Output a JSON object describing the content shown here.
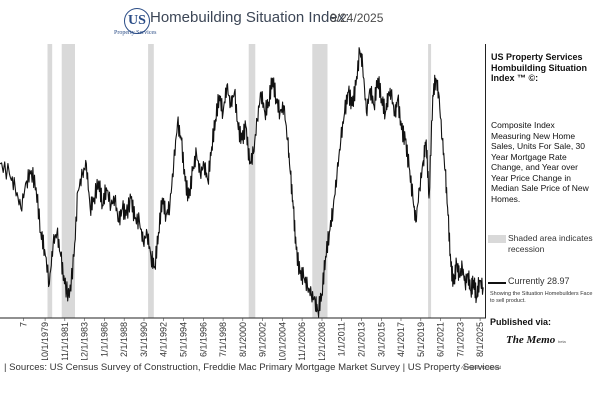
{
  "header": {
    "logo_letters": "US",
    "logo_sub": "Property Services",
    "title": "Homebuilding Situation Index:",
    "date": "9/24/2025"
  },
  "sidebar": {
    "title": "US Property Services Hombuilding Situation Index ™ ©:",
    "description": "Composite Index Measuring New Home Sales, Units For Sale, 30 Year Mortgage Rate Change, and Year over Year Price Change in Median Sale Price of New Homes.",
    "legend_shaded": "Shaded area indicates recession",
    "current": "Currently 28.97",
    "current_note": "Showing the Situation Homebuilders Face to sell product.",
    "published_label": "Published via:",
    "publisher": "The Memo",
    "publisher_sup": "beta"
  },
  "footer": {
    "sources": "| Sources: US Census Survey of Construction, Freddie Mac Primary Mortgage Market Survey | US Property Services",
    "rights": "All Rights Reserved"
  },
  "colors": {
    "line": "#111111",
    "recession": "#d9d9d9",
    "title": "#3c4656",
    "logo": "#2a4c86"
  },
  "chart_data": {
    "type": "line",
    "title": "Homebuilding Situation Index",
    "x_range": [
      1975.0,
      2026.2
    ],
    "ylim": [
      20,
      100
    ],
    "current_value": 28.97,
    "x_tick_labels": [
      {
        "label": "7",
        "x": 1977.5
      },
      {
        "label": "10/1/1979",
        "x": 1979.75
      },
      {
        "label": "11/1/1981",
        "x": 1981.83
      },
      {
        "label": "12/1/1983",
        "x": 1983.92
      },
      {
        "label": "1/1/1986",
        "x": 1986.0
      },
      {
        "label": "2/1/1988",
        "x": 1988.08
      },
      {
        "label": "3/1/1990",
        "x": 1990.17
      },
      {
        "label": "4/1/1992",
        "x": 1992.25
      },
      {
        "label": "5/1/1994",
        "x": 1994.33
      },
      {
        "label": "6/1/1996",
        "x": 1996.42
      },
      {
        "label": "7/1/1998",
        "x": 1998.5
      },
      {
        "label": "8/1/2000",
        "x": 2000.58
      },
      {
        "label": "9/1/2002",
        "x": 2002.67
      },
      {
        "label": "10/1/2004",
        "x": 2004.75
      },
      {
        "label": "11/1/2006",
        "x": 2006.83
      },
      {
        "label": "12/1/2008",
        "x": 2008.92
      },
      {
        "label": "1/1/2011",
        "x": 2011.0
      },
      {
        "label": "2/1/2013",
        "x": 2013.08
      },
      {
        "label": "3/1/2015",
        "x": 2015.17
      },
      {
        "label": "4/1/2017",
        "x": 2017.25
      },
      {
        "label": "5/1/2019",
        "x": 2019.33
      },
      {
        "label": "6/1/2021",
        "x": 2021.42
      },
      {
        "label": "7/1/2023",
        "x": 2023.5
      },
      {
        "label": "8/1/2025",
        "x": 2025.58
      }
    ],
    "recessions": [
      [
        1980.0,
        1980.5
      ],
      [
        1981.5,
        1982.9
      ],
      [
        1990.6,
        1991.2
      ],
      [
        2001.2,
        2001.9
      ],
      [
        2007.9,
        2009.5
      ],
      [
        2020.1,
        2020.4
      ]
    ],
    "series": [
      {
        "name": "Homebuilding Situation Index",
        "points": [
          [
            1975.0,
            65
          ],
          [
            1976.0,
            62
          ],
          [
            1976.6,
            58
          ],
          [
            1977.2,
            52
          ],
          [
            1977.8,
            60
          ],
          [
            1978.3,
            63
          ],
          [
            1978.8,
            58
          ],
          [
            1979.3,
            45
          ],
          [
            1979.7,
            40
          ],
          [
            1980.2,
            30
          ],
          [
            1980.6,
            42
          ],
          [
            1981.0,
            45
          ],
          [
            1981.4,
            38
          ],
          [
            1981.8,
            30
          ],
          [
            1982.3,
            26
          ],
          [
            1982.8,
            38
          ],
          [
            1983.2,
            57
          ],
          [
            1983.7,
            62
          ],
          [
            1984.1,
            65
          ],
          [
            1984.5,
            52
          ],
          [
            1984.9,
            55
          ],
          [
            1985.4,
            60
          ],
          [
            1985.8,
            53
          ],
          [
            1986.2,
            58
          ],
          [
            1986.7,
            53
          ],
          [
            1987.1,
            55
          ],
          [
            1987.5,
            48
          ],
          [
            1987.9,
            52
          ],
          [
            1988.3,
            50
          ],
          [
            1988.8,
            55
          ],
          [
            1989.2,
            49
          ],
          [
            1989.7,
            48
          ],
          [
            1990.1,
            42
          ],
          [
            1990.5,
            45
          ],
          [
            1990.9,
            38
          ],
          [
            1991.3,
            35
          ],
          [
            1991.7,
            45
          ],
          [
            1992.1,
            55
          ],
          [
            1992.5,
            50
          ],
          [
            1992.9,
            53
          ],
          [
            1993.3,
            65
          ],
          [
            1993.7,
            77
          ],
          [
            1994.1,
            72
          ],
          [
            1994.5,
            60
          ],
          [
            1994.9,
            55
          ],
          [
            1995.3,
            63
          ],
          [
            1995.7,
            68
          ],
          [
            1996.1,
            62
          ],
          [
            1996.5,
            65
          ],
          [
            1996.9,
            60
          ],
          [
            1997.3,
            70
          ],
          [
            1997.7,
            78
          ],
          [
            1998.1,
            85
          ],
          [
            1998.5,
            80
          ],
          [
            1998.9,
            88
          ],
          [
            1999.3,
            82
          ],
          [
            1999.7,
            86
          ],
          [
            2000.1,
            75
          ],
          [
            2000.5,
            72
          ],
          [
            2000.9,
            76
          ],
          [
            2001.3,
            65
          ],
          [
            2001.7,
            68
          ],
          [
            2002.1,
            78
          ],
          [
            2002.5,
            86
          ],
          [
            2002.9,
            80
          ],
          [
            2003.3,
            83
          ],
          [
            2003.7,
            90
          ],
          [
            2004.1,
            84
          ],
          [
            2004.5,
            80
          ],
          [
            2004.9,
            82
          ],
          [
            2005.3,
            72
          ],
          [
            2005.6,
            62
          ],
          [
            2005.9,
            52
          ],
          [
            2006.2,
            40
          ],
          [
            2006.6,
            33
          ],
          [
            2007.0,
            32
          ],
          [
            2007.4,
            29
          ],
          [
            2007.8,
            27
          ],
          [
            2008.2,
            25
          ],
          [
            2008.5,
            22
          ],
          [
            2008.9,
            27
          ],
          [
            2009.3,
            38
          ],
          [
            2009.7,
            45
          ],
          [
            2010.1,
            52
          ],
          [
            2010.5,
            62
          ],
          [
            2010.9,
            72
          ],
          [
            2011.3,
            80
          ],
          [
            2011.7,
            86
          ],
          [
            2012.1,
            82
          ],
          [
            2012.5,
            88
          ],
          [
            2012.9,
            98
          ],
          [
            2013.2,
            94
          ],
          [
            2013.6,
            80
          ],
          [
            2014.0,
            87
          ],
          [
            2014.4,
            82
          ],
          [
            2014.8,
            90
          ],
          [
            2015.2,
            84
          ],
          [
            2015.6,
            80
          ],
          [
            2015.9,
            85
          ],
          [
            2016.2,
            86
          ],
          [
            2016.6,
            79
          ],
          [
            2016.9,
            84
          ],
          [
            2017.3,
            75
          ],
          [
            2017.7,
            72
          ],
          [
            2018.1,
            64
          ],
          [
            2018.5,
            55
          ],
          [
            2018.8,
            48
          ],
          [
            2019.2,
            58
          ],
          [
            2019.6,
            66
          ],
          [
            2019.9,
            72
          ],
          [
            2020.2,
            55
          ],
          [
            2020.6,
            85
          ],
          [
            2020.9,
            90
          ],
          [
            2021.2,
            86
          ],
          [
            2021.6,
            72
          ],
          [
            2021.9,
            63
          ],
          [
            2022.2,
            50
          ],
          [
            2022.5,
            35
          ],
          [
            2022.8,
            30
          ],
          [
            2023.1,
            36
          ],
          [
            2023.4,
            32
          ],
          [
            2023.7,
            35
          ],
          [
            2024.0,
            30
          ],
          [
            2024.3,
            33
          ],
          [
            2024.6,
            28
          ],
          [
            2024.9,
            31
          ],
          [
            2025.2,
            26
          ],
          [
            2025.5,
            31
          ],
          [
            2025.9,
            28.97
          ]
        ]
      }
    ]
  }
}
